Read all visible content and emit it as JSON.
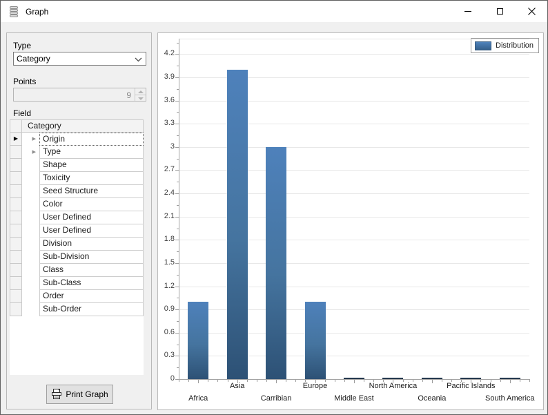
{
  "window": {
    "title": "Graph"
  },
  "panel": {
    "type_label": "Type",
    "type_value": "Category",
    "points_label": "Points",
    "points_value": "9",
    "field_label": "Field",
    "grid_header": "Category",
    "grid_rows": [
      {
        "label": "Origin",
        "expandable": true,
        "current": true,
        "focused": true
      },
      {
        "label": "Type",
        "expandable": true
      },
      {
        "label": "Shape"
      },
      {
        "label": "Toxicity"
      },
      {
        "label": "Seed Structure"
      },
      {
        "label": "Color"
      },
      {
        "label": "User Defined"
      },
      {
        "label": "User Defined"
      },
      {
        "label": "Division"
      },
      {
        "label": "Sub-Division"
      },
      {
        "label": "Class"
      },
      {
        "label": "Sub-Class"
      },
      {
        "label": "Order"
      },
      {
        "label": "Sub-Order"
      }
    ],
    "print_button_label": "Print Graph"
  },
  "chart_data": {
    "type": "bar",
    "title": "",
    "xlabel": "",
    "ylabel": "",
    "categories": [
      "Africa",
      "Asia",
      "Carribian",
      "Europe",
      "Middle East",
      "North America",
      "Oceania",
      "Pacific Islands",
      "South America"
    ],
    "series": [
      {
        "name": "Distribution",
        "values": [
          1,
          4,
          3,
          1,
          0,
          0,
          0,
          0,
          0
        ]
      }
    ],
    "ylim": [
      0,
      4.4
    ],
    "yticks": [
      0,
      0.3,
      0.6,
      0.9,
      1.2,
      1.5,
      1.8,
      2.1,
      2.4,
      2.7,
      3,
      3.3,
      3.6,
      3.9,
      4.2
    ],
    "minor_tick_step": 0.15,
    "grid": true,
    "legend": {
      "label": "Distribution",
      "position": "top-right"
    },
    "colors": {
      "bar_top": "#4e81bb",
      "bar_bottom": "#2d5175",
      "zero_bar": "#24384e",
      "axis": "#a3a3a3",
      "gridline": "#e7e7e7"
    }
  }
}
